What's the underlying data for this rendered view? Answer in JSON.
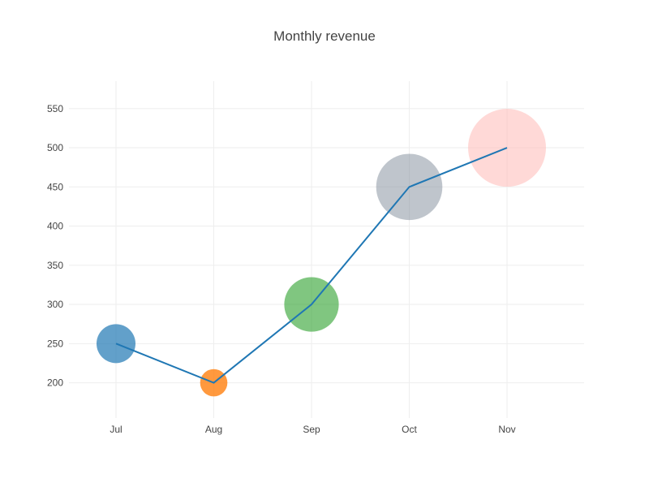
{
  "chart_data": {
    "type": "scatter",
    "title": "Monthly revenue",
    "xlabel": "",
    "ylabel": "",
    "categories": [
      "Jul",
      "Aug",
      "Sep",
      "Oct",
      "Nov"
    ],
    "values": [
      250,
      200,
      300,
      450,
      500
    ],
    "bubble_sizes": [
      1,
      0.7,
      1.4,
      1.7,
      2
    ],
    "marker_colors": [
      "#1f77b4",
      "#ff7f0e",
      "#2ca02c",
      "#7f8c9a",
      "#ffb3b0"
    ],
    "marker_opacity": [
      0.7,
      0.8,
      0.6,
      0.5,
      0.5
    ],
    "line_color": "#1f77b4",
    "ylim": [
      155,
      585
    ],
    "yticks": [
      200,
      250,
      300,
      350,
      400,
      450,
      500,
      550
    ],
    "grid": true,
    "legend": false
  }
}
